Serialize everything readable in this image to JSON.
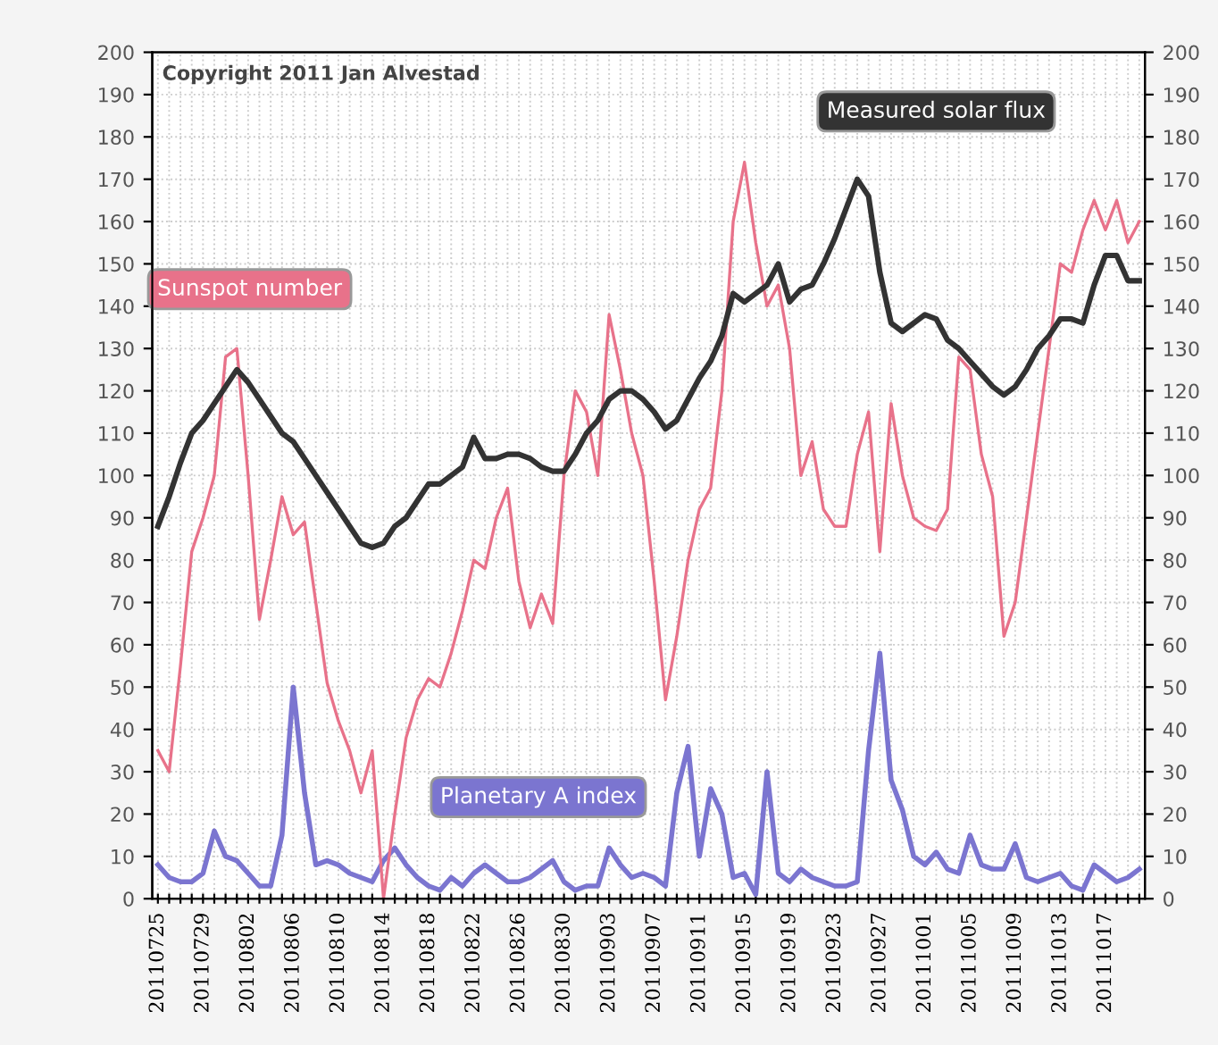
{
  "chart_data": {
    "type": "line",
    "categories": [
      "20110725",
      null,
      null,
      null,
      "20110729",
      null,
      null,
      null,
      "20110802",
      null,
      null,
      null,
      "20110806",
      null,
      null,
      null,
      "20110810",
      null,
      null,
      null,
      "20110814",
      null,
      null,
      null,
      "20110818",
      null,
      null,
      null,
      "20110822",
      null,
      null,
      null,
      "20110826",
      null,
      null,
      null,
      "20110830",
      null,
      null,
      null,
      "20110903",
      null,
      null,
      null,
      "20110907",
      null,
      null,
      null,
      "20110911",
      null,
      null,
      null,
      "20110915",
      null,
      null,
      null,
      "20110919",
      null,
      null,
      null,
      "20110923",
      null,
      null,
      null,
      "20110927",
      null,
      null,
      null,
      "20111001",
      null,
      null,
      null,
      "20111005",
      null,
      null,
      null,
      "20111009",
      null,
      null,
      null,
      "20111013",
      null,
      null,
      null,
      "20111017",
      null,
      null,
      null
    ],
    "series": [
      {
        "name": "Measured solar flux",
        "color": "#333333",
        "values": [
          88,
          95,
          103,
          110,
          113,
          117,
          121,
          125,
          122,
          118,
          114,
          110,
          108,
          104,
          100,
          96,
          92,
          88,
          84,
          83,
          84,
          88,
          90,
          94,
          98,
          98,
          100,
          102,
          109,
          104,
          104,
          105,
          105,
          104,
          102,
          101,
          101,
          105,
          110,
          113,
          118,
          120,
          120,
          118,
          115,
          111,
          113,
          118,
          123,
          127,
          133,
          143,
          141,
          143,
          145,
          150,
          141,
          144,
          145,
          150,
          156,
          163,
          170,
          166,
          148,
          136,
          134,
          136,
          138,
          137,
          132,
          130,
          127,
          124,
          121,
          119,
          121,
          125,
          130,
          133,
          137,
          137,
          136,
          145,
          152,
          152,
          146,
          146
        ]
      },
      {
        "name": "Sunspot number",
        "color": "#e8728a",
        "values": [
          35,
          30,
          55,
          82,
          90,
          100,
          128,
          130,
          100,
          66,
          80,
          95,
          86,
          89,
          70,
          51,
          42,
          35,
          25,
          35,
          0,
          20,
          38,
          47,
          52,
          50,
          58,
          68,
          80,
          78,
          90,
          97,
          75,
          64,
          72,
          65,
          100,
          120,
          115,
          100,
          138,
          125,
          110,
          100,
          75,
          47,
          62,
          80,
          92,
          97,
          120,
          160,
          174,
          155,
          140,
          145,
          130,
          100,
          108,
          92,
          88,
          88,
          105,
          115,
          82,
          117,
          100,
          90,
          88,
          87,
          92,
          128,
          125,
          105,
          95,
          62,
          70,
          90,
          110,
          130,
          150,
          148,
          158,
          165,
          158,
          165,
          155,
          160
        ]
      },
      {
        "name": "Planetary A index",
        "color": "#7b75d0",
        "values": [
          8,
          5,
          4,
          4,
          6,
          16,
          10,
          9,
          6,
          3,
          3,
          15,
          50,
          25,
          8,
          9,
          8,
          6,
          5,
          4,
          9,
          12,
          8,
          5,
          3,
          2,
          5,
          3,
          6,
          8,
          6,
          4,
          4,
          5,
          7,
          9,
          4,
          2,
          3,
          3,
          12,
          8,
          5,
          6,
          5,
          3,
          25,
          36,
          10,
          26,
          20,
          5,
          6,
          1,
          30,
          6,
          4,
          7,
          5,
          4,
          3,
          3,
          4,
          35,
          58,
          28,
          21,
          10,
          8,
          11,
          7,
          6,
          15,
          8,
          7,
          7,
          13,
          5,
          4,
          5,
          6,
          3,
          2,
          8,
          6,
          4,
          5,
          7
        ]
      }
    ],
    "ylim": [
      0,
      200
    ],
    "yticks": [
      0,
      10,
      20,
      30,
      40,
      50,
      60,
      70,
      80,
      90,
      100,
      110,
      120,
      130,
      140,
      150,
      160,
      170,
      180,
      190,
      200
    ],
    "y2lim": [
      0,
      200
    ],
    "y2ticks": [
      0,
      10,
      20,
      30,
      40,
      50,
      60,
      70,
      80,
      90,
      100,
      110,
      120,
      130,
      140,
      150,
      160,
      170,
      180,
      190,
      200
    ],
    "grid": true,
    "legend": false,
    "marker": "none",
    "line_style": "solid",
    "annotations": [
      "Copyright 2011 Jan Alvestad"
    ]
  }
}
